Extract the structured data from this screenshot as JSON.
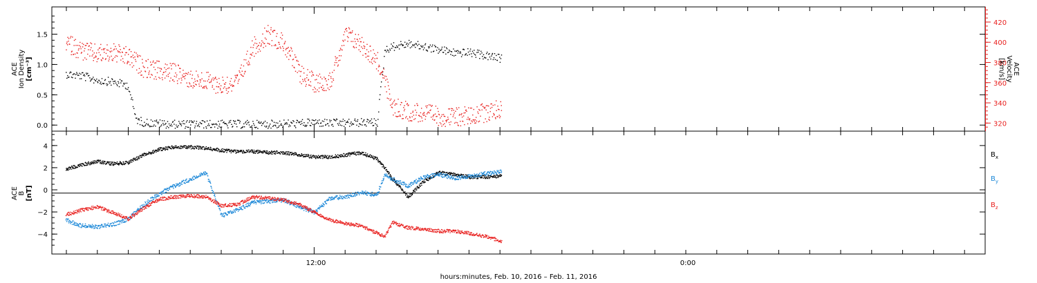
{
  "colors": {
    "black": "#000000",
    "red": "#e8201e",
    "blue": "#1c88d8",
    "axis": "#000000"
  },
  "chart_data": [
    {
      "type": "scatter",
      "panel": "ion-density-velocity",
      "ylabel_left": [
        "ACE",
        "Ion Density",
        "[cm⁻³]"
      ],
      "ylabel_right": [
        "ACE",
        "Velocity",
        "[km/s]"
      ],
      "ylim_left": [
        -0.1,
        1.95
      ],
      "ylim_right": [
        312,
        435
      ],
      "yticks_left": [
        0.0,
        0.5,
        1.0,
        1.5
      ],
      "yticks_left_labels": [
        "0.0",
        "0.5",
        "1.0",
        "1.5"
      ],
      "yticks_right": [
        320,
        340,
        360,
        380,
        400,
        420
      ],
      "yticks_right_labels": [
        "320",
        "340",
        "360",
        "380",
        "400",
        "420"
      ],
      "series": [
        {
          "axis": "left",
          "color": "black",
          "density": 4,
          "x": [
            0,
            1,
            2,
            3,
            4,
            4.5,
            5,
            6,
            7,
            8,
            9,
            10,
            11,
            12,
            13,
            14,
            15,
            16,
            17,
            18,
            19,
            20,
            20.5,
            21,
            22,
            23,
            24,
            25,
            26,
            27,
            28
          ],
          "y": [
            0.85,
            0.82,
            0.75,
            0.72,
            0.66,
            0.1,
            0.05,
            0.03,
            0.02,
            0.02,
            0.02,
            0.02,
            0.02,
            0.02,
            0.02,
            0.03,
            0.03,
            0.05,
            0.04,
            0.04,
            0.05,
            0.05,
            1.25,
            1.3,
            1.35,
            1.3,
            1.25,
            1.2,
            1.2,
            1.15,
            1.1
          ]
        },
        {
          "axis": "right",
          "color": "red",
          "density": 6,
          "x": [
            0,
            1,
            2,
            3,
            4,
            5,
            6,
            7,
            8,
            9,
            10,
            11,
            12,
            13,
            14,
            15,
            16,
            17,
            18,
            19,
            20,
            20.3,
            21,
            22,
            23,
            24,
            25,
            26,
            27,
            28
          ],
          "y": [
            400,
            392,
            389,
            390,
            386,
            375,
            372,
            370,
            364,
            362,
            358,
            360,
            395,
            408,
            400,
            370,
            360,
            363,
            408,
            398,
            382,
            372,
            336,
            332,
            330,
            327,
            326,
            328,
            331,
            335
          ]
        }
      ]
    },
    {
      "type": "scatter",
      "panel": "magnetic-field",
      "ylabel_left": [
        "ACE",
        "B",
        "[nT]"
      ],
      "ylim": [
        -5.8,
        5.3
      ],
      "yticks": [
        -4,
        -2,
        0,
        2,
        4
      ],
      "yticks_labels": [
        "−4",
        "−2",
        "0",
        "2",
        "4"
      ],
      "xtick_labels": [
        "12:00",
        "0:00"
      ],
      "xlabel": "hours:minutes, Feb. 10, 2016 – Feb. 11, 2016",
      "series": [
        {
          "name": "Bx",
          "color": "black",
          "density": 8,
          "x": [
            0,
            1,
            2,
            3,
            4,
            5,
            6,
            7,
            8,
            9,
            10,
            11,
            12,
            13,
            14,
            15,
            16,
            17,
            18,
            19,
            20,
            20.5,
            21,
            22,
            23,
            24,
            25,
            26,
            27,
            28
          ],
          "y": [
            1.9,
            2.3,
            2.6,
            2.4,
            2.5,
            3.2,
            3.7,
            3.9,
            3.9,
            3.8,
            3.6,
            3.5,
            3.5,
            3.4,
            3.4,
            3.2,
            3.0,
            3.0,
            3.2,
            3.4,
            2.8,
            2.0,
            1.0,
            -0.6,
            0.8,
            1.6,
            1.4,
            1.2,
            1.2,
            1.3
          ]
        },
        {
          "name": "By",
          "color": "blue",
          "density": 8,
          "x": [
            0,
            1,
            2,
            3,
            4,
            5,
            6,
            7,
            8,
            9,
            10,
            11,
            12,
            13,
            14,
            15,
            16,
            17,
            18,
            19,
            20,
            20.5,
            21,
            22,
            23,
            24,
            25,
            26,
            27,
            28
          ],
          "y": [
            -2.7,
            -3.2,
            -3.3,
            -3.1,
            -2.6,
            -1.3,
            -0.3,
            0.4,
            1.0,
            1.6,
            -2.3,
            -1.8,
            -1.1,
            -1.0,
            -0.9,
            -1.5,
            -2.0,
            -0.7,
            -0.6,
            -0.2,
            -0.4,
            1.4,
            1.0,
            0.4,
            1.2,
            1.4,
            1.1,
            1.3,
            1.5,
            1.7
          ]
        },
        {
          "name": "Bz",
          "color": "red",
          "density": 8,
          "x": [
            0,
            1,
            2,
            3,
            4,
            5,
            6,
            7,
            8,
            9,
            10,
            11,
            12,
            13,
            14,
            15,
            16,
            17,
            18,
            19,
            20,
            20.5,
            21,
            22,
            23,
            24,
            25,
            26,
            27,
            28
          ],
          "y": [
            -2.2,
            -1.8,
            -1.5,
            -2.0,
            -2.6,
            -1.6,
            -0.8,
            -0.6,
            -0.5,
            -0.6,
            -1.4,
            -1.3,
            -0.6,
            -0.7,
            -0.9,
            -1.3,
            -2.0,
            -2.7,
            -3.0,
            -3.2,
            -3.9,
            -4.2,
            -2.9,
            -3.4,
            -3.5,
            -3.7,
            -3.7,
            -3.9,
            -4.2,
            -4.6
          ]
        }
      ]
    }
  ],
  "labels": {
    "bx": "B",
    "bx_sub": "x",
    "by": "B",
    "by_sub": "y",
    "bz": "B",
    "bz_sub": "z"
  }
}
